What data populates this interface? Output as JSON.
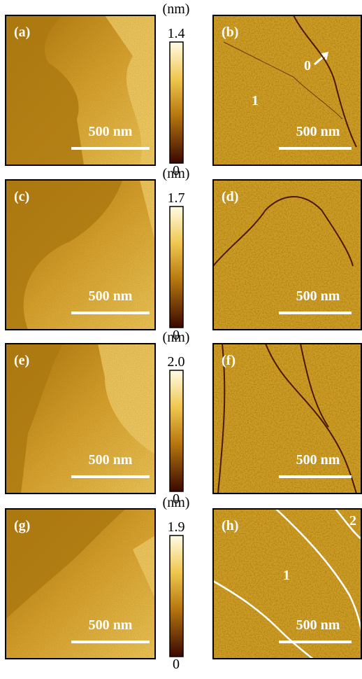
{
  "rows": [
    {
      "left": {
        "label": "(a)",
        "scale_bar": "500 nm"
      },
      "right": {
        "label": "(b)",
        "scale_bar": "500 nm",
        "annotations": [
          "0",
          "1"
        ]
      },
      "colorbar": {
        "unit": "(nm)",
        "max": "1.4",
        "min": "0"
      }
    },
    {
      "left": {
        "label": "(c)",
        "scale_bar": "500 nm"
      },
      "right": {
        "label": "(d)",
        "scale_bar": "500 nm"
      },
      "colorbar": {
        "unit": "(nm)",
        "max": "1.7",
        "min": "0"
      }
    },
    {
      "left": {
        "label": "(e)",
        "scale_bar": "500 nm"
      },
      "right": {
        "label": "(f)",
        "scale_bar": "500 nm"
      },
      "colorbar": {
        "unit": "(nm)",
        "max": "2.0",
        "min": "0"
      }
    },
    {
      "left": {
        "label": "(g)",
        "scale_bar": "500 nm"
      },
      "right": {
        "label": "(h)",
        "scale_bar": "500 nm",
        "annotations": [
          "1",
          "2"
        ]
      },
      "colorbar": {
        "unit": "(nm)",
        "max": "1.9",
        "min": "0"
      }
    }
  ]
}
